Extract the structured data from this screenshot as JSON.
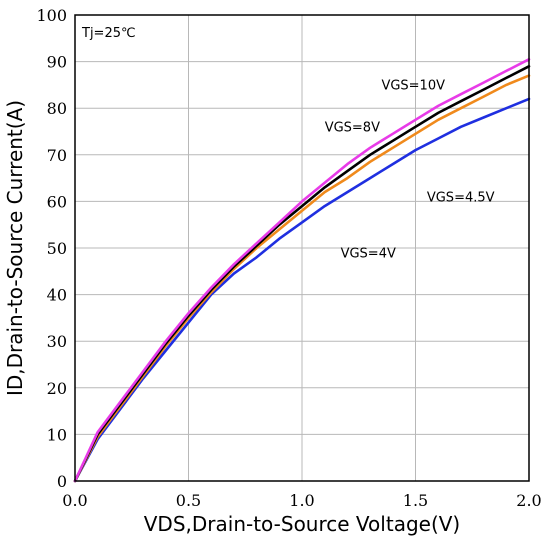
{
  "chart_data": {
    "type": "line",
    "title": "",
    "xlabel": "VDS,Drain-to-Source Voltage(V)",
    "ylabel": "ID,Drain-to-Source Current(A)",
    "xlim": [
      0,
      2.0
    ],
    "ylim": [
      0,
      100
    ],
    "x_ticks": [
      "0.0",
      "0.5",
      "1.0",
      "1.5",
      "2.0"
    ],
    "x_tick_values": [
      0,
      0.5,
      1.0,
      1.5,
      2.0
    ],
    "y_ticks": [
      "0",
      "10",
      "20",
      "30",
      "40",
      "50",
      "60",
      "70",
      "80",
      "90",
      "100"
    ],
    "y_tick_values": [
      0,
      10,
      20,
      30,
      40,
      50,
      60,
      70,
      80,
      90,
      100
    ],
    "grid": true,
    "condition_label": "Tj=25℃",
    "series": [
      {
        "name": "VGS=4V",
        "color": "#1f2fe0",
        "x": [
          0,
          0.1,
          0.2,
          0.3,
          0.4,
          0.5,
          0.6,
          0.7,
          0.8,
          0.9,
          1.0,
          1.1,
          1.2,
          1.3,
          1.4,
          1.5,
          1.6,
          1.7,
          1.8,
          1.9,
          2.0
        ],
        "y": [
          0,
          9,
          15.5,
          22,
          28,
          34,
          40,
          44.5,
          48,
          52,
          55.5,
          59,
          62,
          65,
          68,
          71,
          73.5,
          76,
          78,
          80,
          82
        ]
      },
      {
        "name": "VGS=4.5V",
        "color": "#f08a1c",
        "x": [
          0,
          0.1,
          0.2,
          0.3,
          0.4,
          0.5,
          0.6,
          0.7,
          0.8,
          0.9,
          1.0,
          1.1,
          1.2,
          1.3,
          1.4,
          1.5,
          1.6,
          1.7,
          1.8,
          1.9,
          2.0
        ],
        "y": [
          0,
          9.5,
          16,
          22.5,
          29,
          35,
          40.5,
          45.5,
          50,
          54,
          58,
          62,
          65,
          68.5,
          71.5,
          74.5,
          77.5,
          80,
          82.5,
          85,
          87
        ]
      },
      {
        "name": "VGS=8V",
        "color": "#000000",
        "x": [
          0,
          0.1,
          0.2,
          0.3,
          0.4,
          0.5,
          0.6,
          0.7,
          0.8,
          0.9,
          1.0,
          1.1,
          1.2,
          1.3,
          1.4,
          1.5,
          1.6,
          1.7,
          1.8,
          1.9,
          2.0
        ],
        "y": [
          0,
          10,
          16.5,
          23,
          29.5,
          35.5,
          41,
          46,
          50.5,
          55,
          59,
          63,
          66.5,
          70,
          73,
          76,
          79,
          81.5,
          84,
          86.5,
          89
        ]
      },
      {
        "name": "VGS=10V",
        "color": "#e83be8",
        "x": [
          0,
          0.1,
          0.2,
          0.3,
          0.4,
          0.5,
          0.6,
          0.7,
          0.8,
          0.9,
          1.0,
          1.1,
          1.2,
          1.3,
          1.4,
          1.5,
          1.6,
          1.7,
          1.8,
          1.9,
          2.0
        ],
        "y": [
          0,
          10.5,
          17,
          23.5,
          30,
          36,
          41.5,
          46.5,
          51,
          55.5,
          60,
          64,
          68,
          71.5,
          74.5,
          77.5,
          80.5,
          83,
          85.5,
          88,
          90.5
        ]
      }
    ],
    "annotations": [
      {
        "series": "VGS=10V",
        "text": "VGS=10V",
        "x": 1.35,
        "y": 84
      },
      {
        "series": "VGS=8V",
        "text": "VGS=8V",
        "x": 1.1,
        "y": 75
      },
      {
        "series": "VGS=4.5V",
        "text": "VGS=4.5V",
        "x": 1.55,
        "y": 60
      },
      {
        "series": "VGS=4V",
        "text": "VGS=4V",
        "x": 1.17,
        "y": 48
      }
    ]
  }
}
